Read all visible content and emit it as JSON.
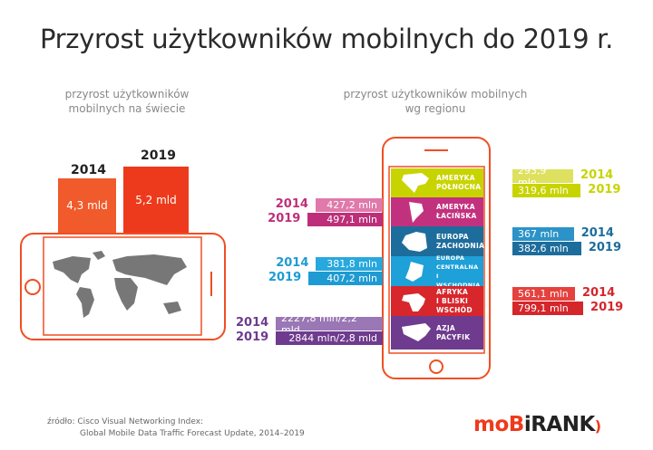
{
  "title": "Przyrost użytkowników mobilnych do 2019 r.",
  "left_subtitle": [
    "przyrost użytkowników",
    "mobilnych na świecie"
  ],
  "right_subtitle": [
    "przyrost użytkowników mobilnych",
    "wg regionu"
  ],
  "source": [
    "źródło: Cisco Visual Networking Index:",
    "Global Mobile Data Traffic Forecast Update, 2014–2019"
  ],
  "logo": {
    "part1": "moB",
    "part2": "i",
    "part3": "RANK",
    "color": "#ee3a1c"
  },
  "chart_data": [
    {
      "type": "bar",
      "categories": [
        "2014",
        "2019"
      ],
      "values": [
        4.3,
        5.2
      ],
      "labels": [
        "4,3 mld",
        "5,2 mld"
      ],
      "colors": [
        "#f15a2b",
        "#ee3a1c"
      ],
      "unit": "mld"
    },
    {
      "type": "bar",
      "categories": [
        "2014",
        "2019"
      ],
      "series": [
        {
          "name": "AMERYKA PÓŁNOCNA",
          "values": [
            293.9,
            319.6
          ],
          "labels": [
            "293,9 mln",
            "319,6 mln"
          ],
          "colors": [
            "#dde15f",
            "#c8d400"
          ]
        },
        {
          "name": "AMERYKA ŁACIŃSKA",
          "values": [
            427.2,
            497.1
          ],
          "labels": [
            "427,2 mln",
            "497,1 mln"
          ],
          "colors": [
            "#e07aaa",
            "#bd2f7a"
          ]
        },
        {
          "name": "EUROPA ZACHODNIA",
          "values": [
            367,
            382.6
          ],
          "labels": [
            "367 mln",
            "382,6 mln"
          ],
          "colors": [
            "#2b93c7",
            "#1d6d9c"
          ]
        },
        {
          "name": "EUROPA CENTRALNA I WSCHODNIA",
          "values": [
            381.8,
            407.2
          ],
          "labels": [
            "381,8 mln",
            "407,2 mln"
          ],
          "colors": [
            "#27a8de",
            "#1e9bd2"
          ]
        },
        {
          "name": "AFRYKA I BLISKI WSCHÓD",
          "values": [
            561.1,
            799.1
          ],
          "labels": [
            "561,1 mln",
            "799,1 mln"
          ],
          "colors": [
            "#e5423f",
            "#d4262b"
          ]
        },
        {
          "name": "AZJA PACYFIK",
          "values": [
            2227.8,
            2844
          ],
          "labels": [
            "2227,8 mln/2,2 mld",
            "2844 mln/2,8 mld"
          ],
          "colors": [
            "#9a77b5",
            "#6e3b8e"
          ]
        }
      ],
      "unit": "mln"
    }
  ],
  "region_lines": [
    [
      "AMERYKA",
      "PÓŁNOCNA"
    ],
    [
      "AMERYKA",
      "ŁACIŃSKA"
    ],
    [
      "EUROPA",
      "ZACHODNIA"
    ],
    [
      "EUROPA",
      "CENTRALNA",
      "I WSCHODNIA"
    ],
    [
      "AFRYKA",
      "I BLISKI WSCHÓD"
    ],
    [
      "AZJA",
      "PACYFIK"
    ]
  ],
  "region_colors": [
    "#c8d400",
    "#c2317e",
    "#1d6d9c",
    "#1ea0d8",
    "#d7262c",
    "#6e3b8e"
  ],
  "phone_color": "#f04e23"
}
